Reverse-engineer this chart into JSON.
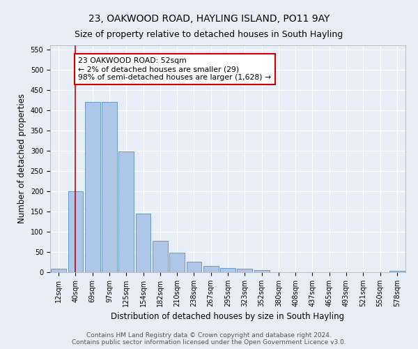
{
  "title": "23, OAKWOOD ROAD, HAYLING ISLAND, PO11 9AY",
  "subtitle": "Size of property relative to detached houses in South Hayling",
  "xlabel": "Distribution of detached houses by size in South Hayling",
  "ylabel": "Number of detached properties",
  "footer_line1": "Contains HM Land Registry data © Crown copyright and database right 2024.",
  "footer_line2": "Contains public sector information licensed under the Open Government Licence v3.0.",
  "bar_labels": [
    "12sqm",
    "40sqm",
    "69sqm",
    "97sqm",
    "125sqm",
    "154sqm",
    "182sqm",
    "210sqm",
    "238sqm",
    "267sqm",
    "295sqm",
    "323sqm",
    "352sqm",
    "380sqm",
    "408sqm",
    "437sqm",
    "465sqm",
    "493sqm",
    "521sqm",
    "550sqm",
    "578sqm"
  ],
  "bar_values": [
    8,
    200,
    420,
    420,
    298,
    144,
    78,
    48,
    25,
    15,
    10,
    9,
    6,
    0,
    0,
    0,
    0,
    0,
    0,
    0,
    3
  ],
  "bar_color": "#aec6e8",
  "bar_edge_color": "#5a8fc2",
  "background_color": "#e8eef8",
  "vline_x": 1,
  "vline_color": "#cc0000",
  "annotation_text": "23 OAKWOOD ROAD: 52sqm\n← 2% of detached houses are smaller (29)\n98% of semi-detached houses are larger (1,628) →",
  "annotation_box_color": "#ffffff",
  "annotation_box_edgecolor": "#cc0000",
  "ylim": [
    0,
    560
  ],
  "yticks": [
    0,
    50,
    100,
    150,
    200,
    250,
    300,
    350,
    400,
    450,
    500,
    550
  ],
  "grid_color": "#ffffff",
  "title_fontsize": 10,
  "subtitle_fontsize": 9,
  "axis_label_fontsize": 8.5,
  "tick_fontsize": 7,
  "footer_fontsize": 6.5
}
